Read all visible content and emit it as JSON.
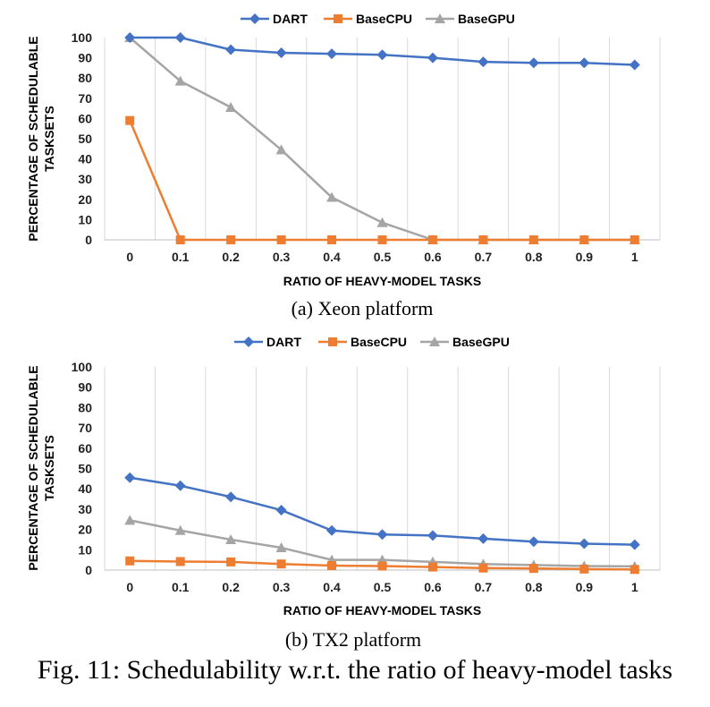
{
  "chart_data": [
    {
      "type": "line",
      "id": "xeon",
      "subcaption": "(a) Xeon platform",
      "xlabel": "RATIO OF HEAVY-MODEL TASKS",
      "ylabel_lines": [
        "PERCENTAGE OF SCHEDULABLE",
        "TASKSETS"
      ],
      "categories": [
        "0",
        "0.1",
        "0.2",
        "0.3",
        "0.4",
        "0.5",
        "0.6",
        "0.7",
        "0.8",
        "0.9",
        "1"
      ],
      "yticks": [
        0,
        10,
        20,
        30,
        40,
        50,
        60,
        70,
        80,
        90,
        100
      ],
      "ylim": [
        0,
        100
      ],
      "legend_position": "top",
      "series": [
        {
          "name": "DART",
          "color": "#4472C4",
          "marker": "diamond",
          "values": [
            100,
            100,
            94,
            92.5,
            92,
            91.5,
            90,
            88,
            87.5,
            87.5,
            86.5
          ]
        },
        {
          "name": "BaseCPU",
          "color": "#ED7D31",
          "marker": "square",
          "values": [
            59,
            0,
            0,
            0,
            0,
            0,
            0,
            0,
            0,
            0,
            0
          ]
        },
        {
          "name": "BaseGPU",
          "color": "#A5A5A5",
          "marker": "triangle",
          "values": [
            100,
            78.5,
            65.5,
            44.5,
            21,
            8.5,
            0,
            0,
            0,
            0,
            0
          ]
        }
      ]
    },
    {
      "type": "line",
      "id": "tx2",
      "subcaption": "(b) TX2 platform",
      "xlabel": "RATIO OF HEAVY-MODEL TASKS",
      "ylabel_lines": [
        "PERCENTAGE OF SCHEDULABLE",
        "TASKSETS"
      ],
      "categories": [
        "0",
        "0.1",
        "0.2",
        "0.3",
        "0.4",
        "0.5",
        "0.6",
        "0.7",
        "0.8",
        "0.9",
        "1"
      ],
      "yticks": [
        0,
        10,
        20,
        30,
        40,
        50,
        60,
        70,
        80,
        90,
        100
      ],
      "ylim": [
        0,
        100
      ],
      "legend_position": "top",
      "series": [
        {
          "name": "DART",
          "color": "#4472C4",
          "marker": "diamond",
          "values": [
            45.5,
            41.5,
            36,
            29.5,
            19.5,
            17.5,
            17,
            15.5,
            14,
            13,
            12.5
          ]
        },
        {
          "name": "BaseCPU",
          "color": "#ED7D31",
          "marker": "square",
          "values": [
            4.5,
            4.2,
            4,
            3,
            2.2,
            2,
            1.5,
            1,
            0.8,
            0.5,
            0.3
          ]
        },
        {
          "name": "BaseGPU",
          "color": "#A5A5A5",
          "marker": "triangle",
          "values": [
            24.5,
            19.5,
            15,
            11,
            5,
            5,
            4,
            3,
            2.5,
            2,
            1.8
          ]
        }
      ]
    }
  ],
  "figure_caption": "Fig. 11: Schedulability w.r.t. the ratio of heavy-model tasks"
}
